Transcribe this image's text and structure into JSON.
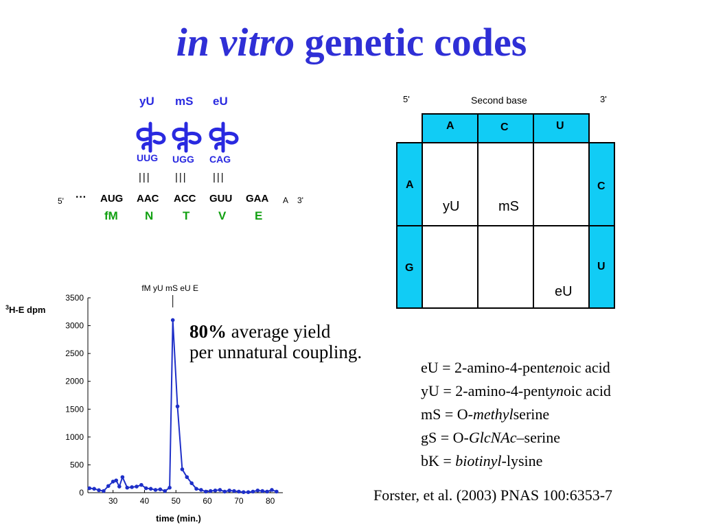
{
  "title": {
    "italic": "in vitro",
    "rest": "genetic codes"
  },
  "trna_diagram": {
    "trna_labels": [
      "yU",
      "mS",
      "eU"
    ],
    "anticodons": [
      "UUG",
      "UGG",
      "CAG"
    ],
    "pair_bars": "|||",
    "five_prime": "5'",
    "ellipsis": "···",
    "codons": [
      "AUG",
      "AAC",
      "ACC",
      "GUU",
      "GAA"
    ],
    "tail": "A",
    "three_prime": "3'",
    "amino_acids": [
      "fM",
      "N",
      "T",
      "V",
      "E"
    ]
  },
  "code_table": {
    "five_prime": "5'",
    "header": "Second base",
    "three_prime": "3'",
    "columns": [
      "A",
      "C",
      "U"
    ],
    "rows": [
      "A",
      "G"
    ],
    "third_bases": [
      "C",
      "U"
    ],
    "entries": {
      "yU": "yU",
      "mS": "mS",
      "eU": "eU"
    }
  },
  "chart_data": {
    "type": "line",
    "ylabel_sup": "3",
    "ylabel": "H-E dpm",
    "xlabel": "time (min.)",
    "xlim": [
      22,
      84
    ],
    "ylim": [
      0,
      3500
    ],
    "xticks": [
      30,
      40,
      50,
      60,
      70,
      80
    ],
    "yticks": [
      0,
      500,
      1000,
      1500,
      2000,
      2500,
      3000,
      3500
    ],
    "annotation": "fM yU mS eU E",
    "annotation_x": 49,
    "x": [
      22.5,
      24,
      25.5,
      27,
      28.5,
      30,
      31,
      32,
      33,
      34.5,
      36,
      37.5,
      39,
      40.5,
      42,
      43.5,
      45,
      46.5,
      48,
      49,
      50.5,
      52,
      53.5,
      55,
      56.5,
      58,
      59.5,
      61,
      62.5,
      64,
      65.5,
      67,
      68.5,
      70,
      71.5,
      73,
      74.5,
      76,
      77.5,
      79,
      80.5,
      82
    ],
    "y": [
      80,
      70,
      45,
      30,
      120,
      200,
      220,
      110,
      280,
      90,
      100,
      110,
      140,
      80,
      70,
      50,
      60,
      30,
      90,
      3100,
      1550,
      420,
      280,
      170,
      70,
      50,
      20,
      30,
      40,
      50,
      20,
      40,
      30,
      20,
      10,
      10,
      20,
      40,
      30,
      20,
      50,
      20
    ]
  },
  "yield_note": {
    "bold": "80%",
    "line1_rest": "average yield",
    "line2": "per unnatural coupling."
  },
  "abbreviations": [
    {
      "pre": "eU = 2-amino-4-pent",
      "it": "en",
      "post": "oic acid"
    },
    {
      "pre": "yU = 2-amino-4-pent",
      "it": "yn",
      "post": "oic acid"
    },
    {
      "pre": "mS = O-",
      "it": "methyl",
      "post": "serine"
    },
    {
      "pre": "gS  = O-",
      "it": "GlcNAc",
      "post": "–serine"
    },
    {
      "pre": "bK = ",
      "it": "biotinyl",
      "post": "-lysine"
    }
  ],
  "citation": "Forster, et al. (2003) PNAS 100:6353-7",
  "colors": {
    "title": "#2f2fd6",
    "trna": "#2929e0",
    "amino_acid": "#11a011",
    "table_cyan": "#11ccf5",
    "plot": "#1e2fc8"
  }
}
